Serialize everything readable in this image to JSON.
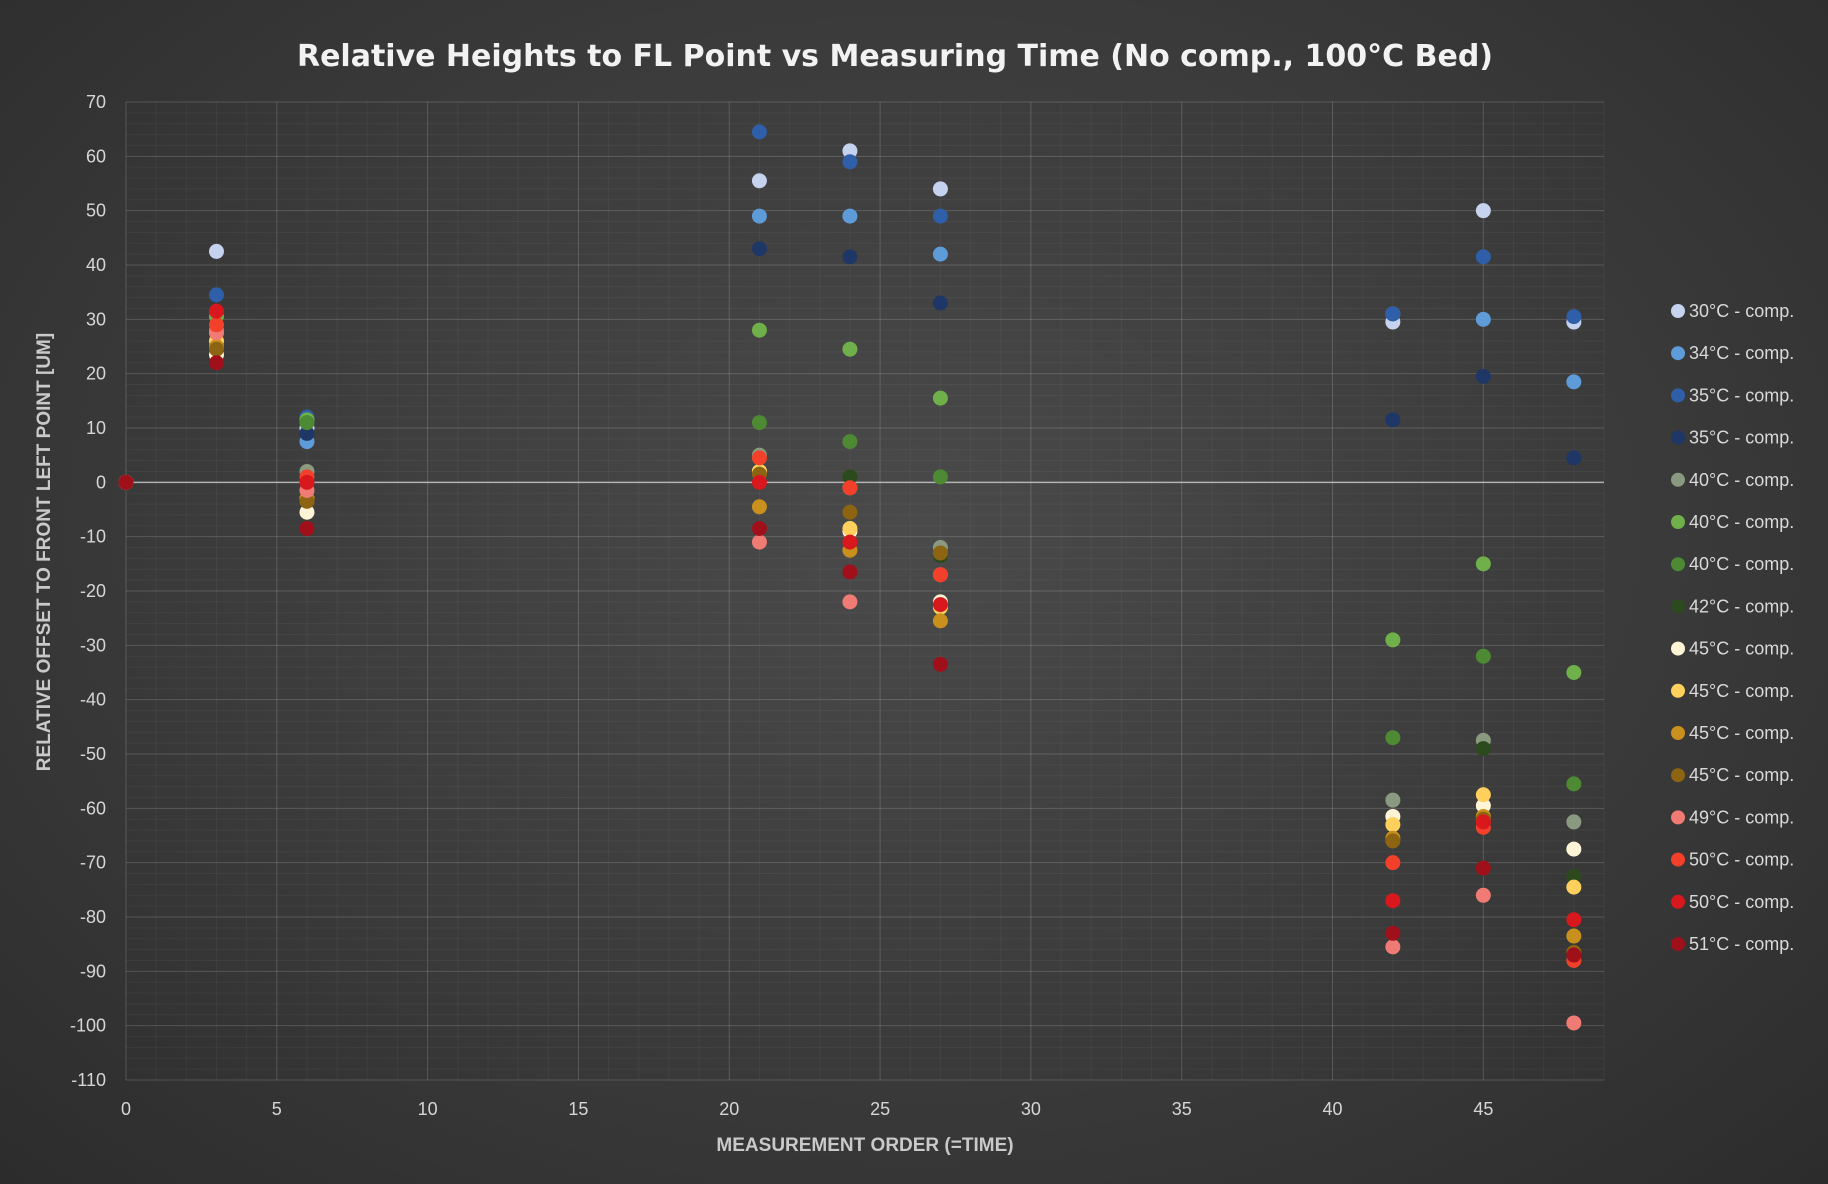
{
  "chart_data": {
    "type": "scatter",
    "title": "Relative Heights to FL Point vs Measuring Time (No comp., 100°C Bed)",
    "xlabel": "MEASUREMENT ORDER (=TIME)",
    "ylabel": "RELATIVE OFFSET TO FRONT LEFT POINT [UM]",
    "xlim": [
      0,
      49
    ],
    "ylim": [
      -110,
      70
    ],
    "x_ticks": [
      0,
      5,
      10,
      15,
      20,
      25,
      30,
      35,
      40,
      45
    ],
    "y_ticks": [
      70,
      60,
      50,
      40,
      30,
      20,
      10,
      0,
      -10,
      -20,
      -30,
      -40,
      -50,
      -60,
      -70,
      -80,
      -90,
      -100,
      -110
    ],
    "grid": true,
    "legend_position": "right",
    "x": [
      0,
      3,
      6,
      21,
      24,
      27,
      42,
      45,
      48
    ],
    "series": [
      {
        "name": "30°C - comp.",
        "color": "#c5d3ef",
        "values": [
          0,
          42.5,
          10,
          55.5,
          61,
          54,
          29.5,
          50,
          29.5
        ]
      },
      {
        "name": "34°C - comp.",
        "color": "#5e9bd9",
        "values": [
          0,
          28,
          7.5,
          49,
          49,
          42,
          31,
          30,
          18.5
        ]
      },
      {
        "name": "35°C - comp.",
        "color": "#2f5fa8",
        "values": [
          0,
          34.5,
          12,
          64.5,
          59,
          49,
          31,
          41.5,
          30.5
        ]
      },
      {
        "name": "35°C - comp.",
        "color": "#1e3766",
        "values": [
          0,
          30,
          9,
          43,
          41.5,
          33,
          11.5,
          19.5,
          4.5
        ]
      },
      {
        "name": "40°C - comp.",
        "color": "#8a9a80",
        "values": [
          0,
          25,
          2,
          5,
          -1,
          -12,
          -58.5,
          -47.5,
          -62.5
        ]
      },
      {
        "name": "40°C - comp.",
        "color": "#6fb04a",
        "values": [
          0,
          30.5,
          11.5,
          28,
          24.5,
          15.5,
          -29,
          -15,
          -35
        ]
      },
      {
        "name": "40°C - comp.",
        "color": "#4e8a34",
        "values": [
          0,
          26,
          11,
          11,
          7.5,
          1,
          -47,
          -32,
          -55.5
        ]
      },
      {
        "name": "42°C - comp.",
        "color": "#2c4a1e",
        "values": [
          0,
          24,
          0,
          1.5,
          1,
          -13.5,
          -62.5,
          -49,
          -72.5
        ]
      },
      {
        "name": "45°C - comp.",
        "color": "#fff4d6",
        "values": [
          0,
          23.5,
          -5.5,
          2,
          -9,
          -22,
          -61.5,
          -59.5,
          -67.5
        ]
      },
      {
        "name": "45°C - comp.",
        "color": "#ffd15c",
        "values": [
          0,
          26,
          -3,
          2,
          -8.5,
          -23,
          -63,
          -57.5,
          -74.5
        ]
      },
      {
        "name": "45°C - comp.",
        "color": "#c9901e",
        "values": [
          0,
          25,
          -3,
          -4.5,
          -12.5,
          -25.5,
          -65.5,
          -61.5,
          -83.5
        ]
      },
      {
        "name": "45°C - comp.",
        "color": "#8c6412",
        "values": [
          0,
          24.5,
          -3.5,
          1.5,
          -5.5,
          -13,
          -66,
          -62,
          -86.5
        ]
      },
      {
        "name": "49°C - comp.",
        "color": "#ef7b74",
        "values": [
          0,
          27.5,
          -1.5,
          -11,
          -22,
          -17,
          -85.5,
          -76,
          -99.5
        ]
      },
      {
        "name": "50°C - comp.",
        "color": "#f2402a",
        "values": [
          0,
          29,
          1,
          4.5,
          -1,
          -17,
          -70,
          -63.5,
          -88
        ]
      },
      {
        "name": "50°C - comp.",
        "color": "#d9181e",
        "values": [
          0,
          31.5,
          0,
          0,
          -11,
          -22.5,
          -77,
          -62.5,
          -80.5
        ]
      },
      {
        "name": "51°C - comp.",
        "color": "#a0101a",
        "values": [
          0,
          22,
          -8.5,
          -8.5,
          -16.5,
          -33.5,
          -83,
          -71,
          -87
        ]
      }
    ]
  }
}
